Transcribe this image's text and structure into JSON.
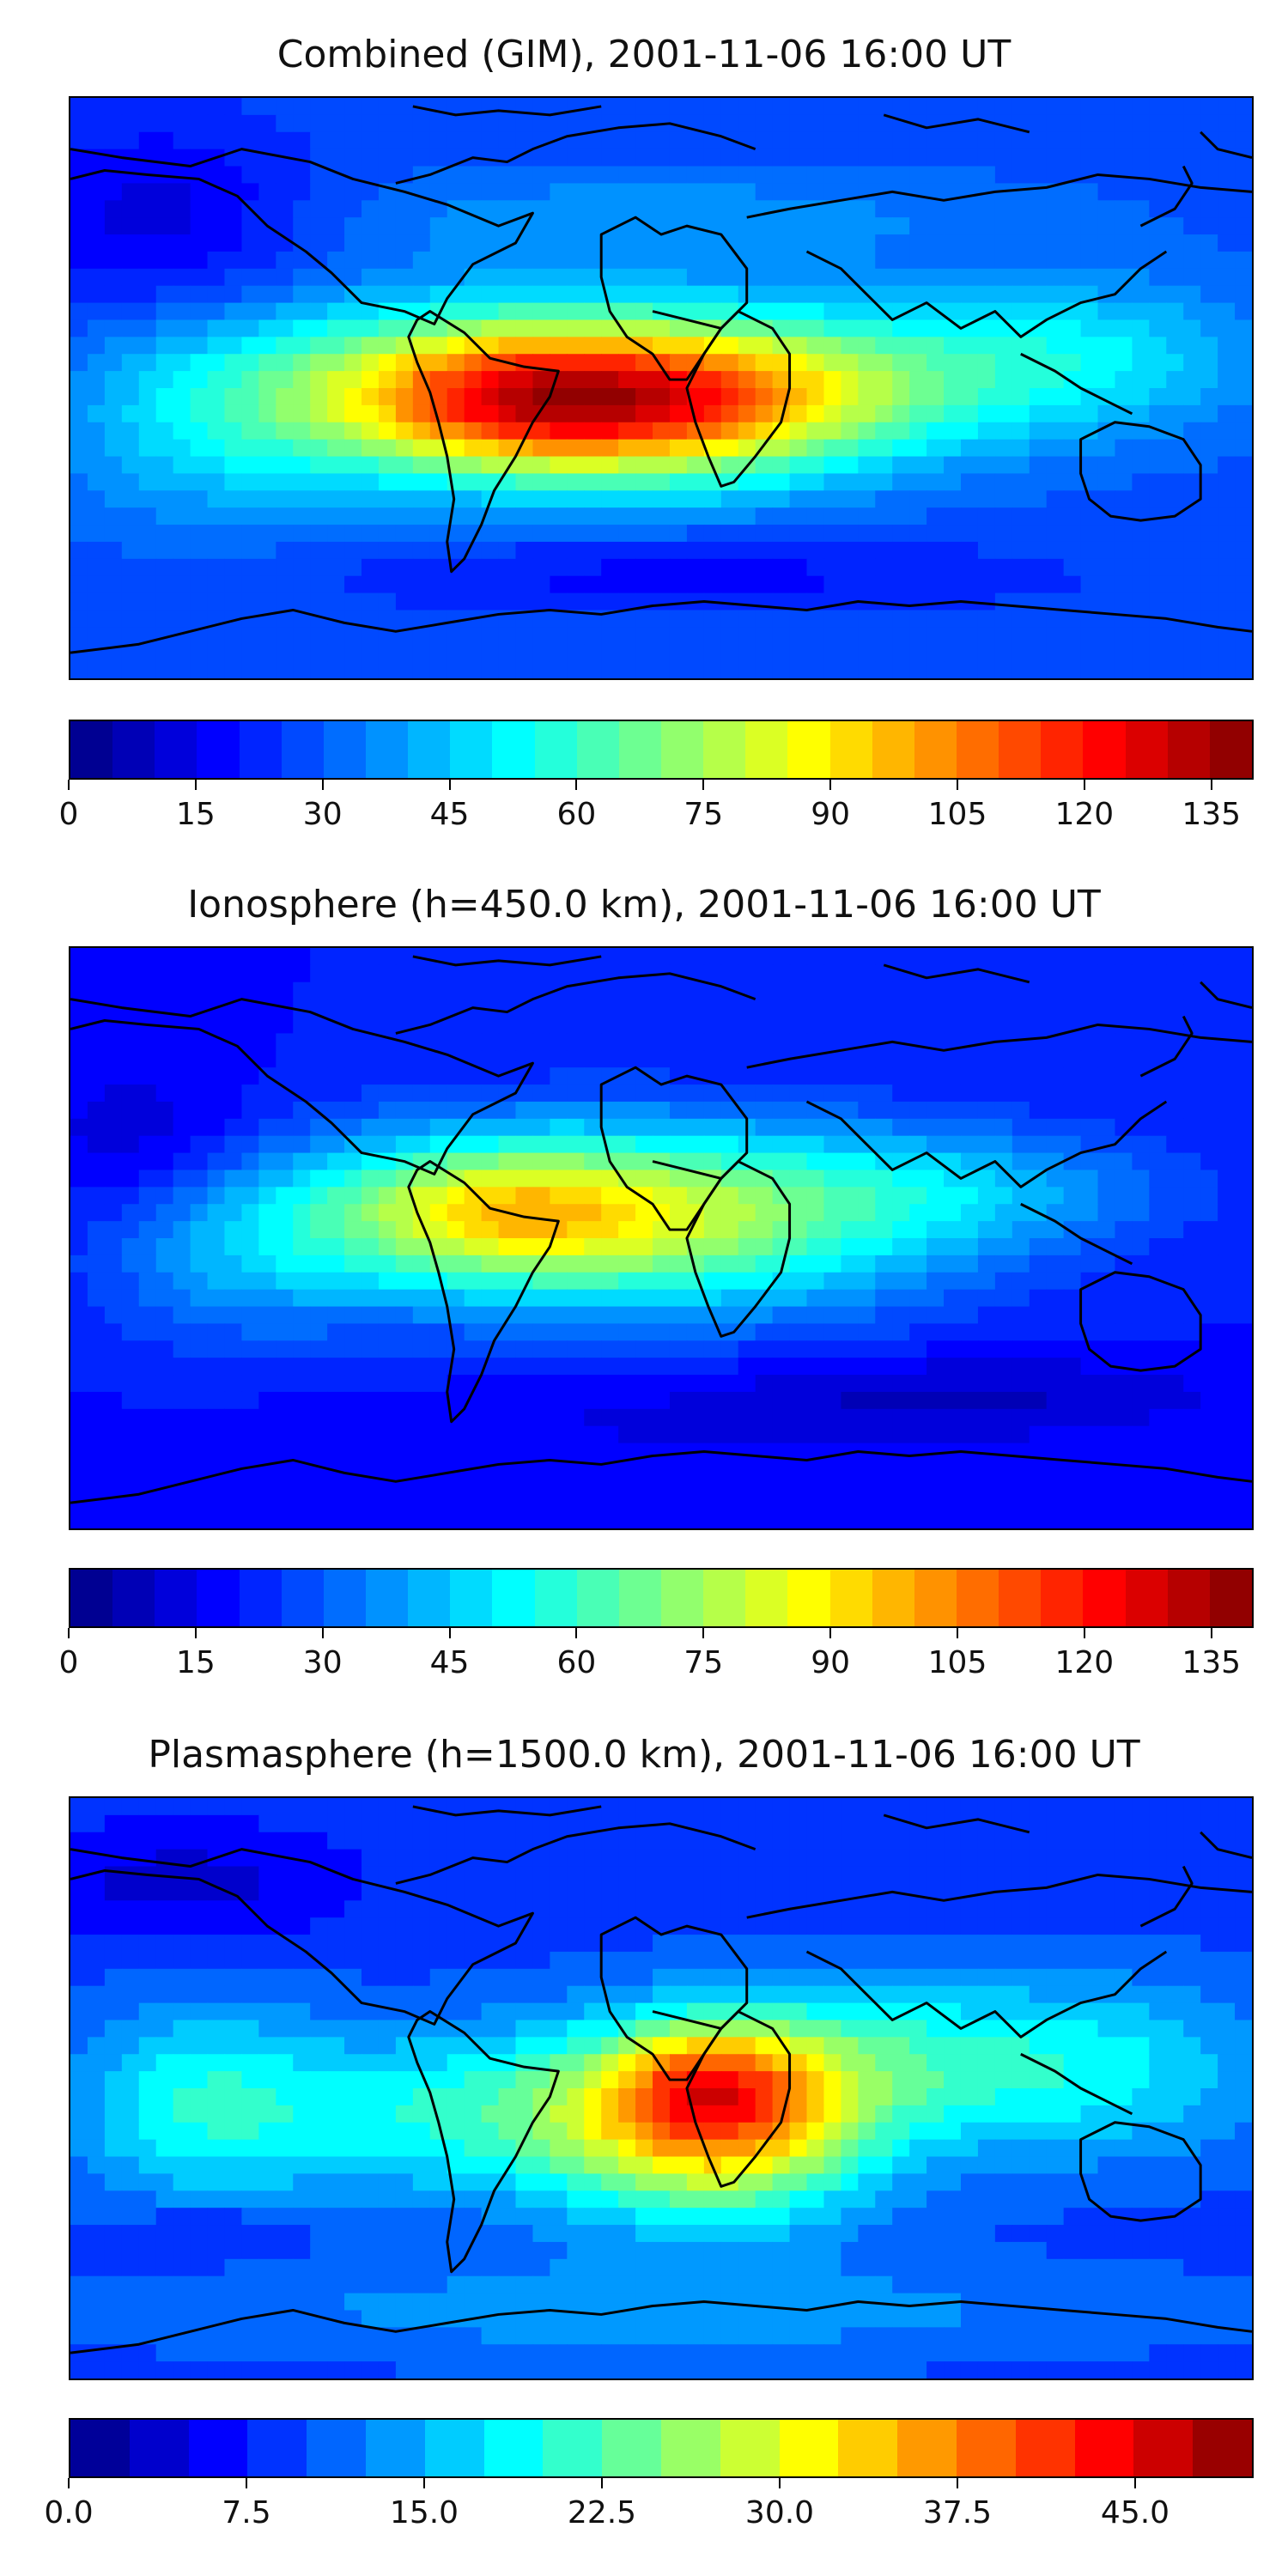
{
  "coastline_color": "#000000",
  "panels": [
    {
      "title": "Combined (GIM), 2001-11-06 16:00 UT",
      "field": "combined",
      "colorbar": {
        "min": 0,
        "max": 140,
        "levels": 28,
        "ticks": [
          "0",
          "15",
          "30",
          "45",
          "60",
          "75",
          "90",
          "105",
          "120",
          "135"
        ],
        "tick_values": [
          0,
          15,
          30,
          45,
          60,
          75,
          90,
          105,
          120,
          135
        ]
      }
    },
    {
      "title": "Ionosphere  (h=450.0 km), 2001-11-06 16:00 UT",
      "field": "ionosphere",
      "colorbar": {
        "min": 0,
        "max": 140,
        "levels": 28,
        "ticks": [
          "0",
          "15",
          "30",
          "45",
          "60",
          "75",
          "90",
          "105",
          "120",
          "135"
        ],
        "tick_values": [
          0,
          15,
          30,
          45,
          60,
          75,
          90,
          105,
          120,
          135
        ]
      }
    },
    {
      "title": "Plasmasphere (h=1500.0 km), 2001-11-06 16:00 UT",
      "field": "plasmasphere",
      "colorbar": {
        "min": 0,
        "max": 50,
        "levels": 20,
        "ticks": [
          "0.0",
          "7.5",
          "15.0",
          "22.5",
          "30.0",
          "37.5",
          "45.0"
        ],
        "tick_values": [
          0,
          7.5,
          15,
          22.5,
          30,
          37.5,
          45
        ]
      }
    }
  ],
  "colormap": "jet"
}
